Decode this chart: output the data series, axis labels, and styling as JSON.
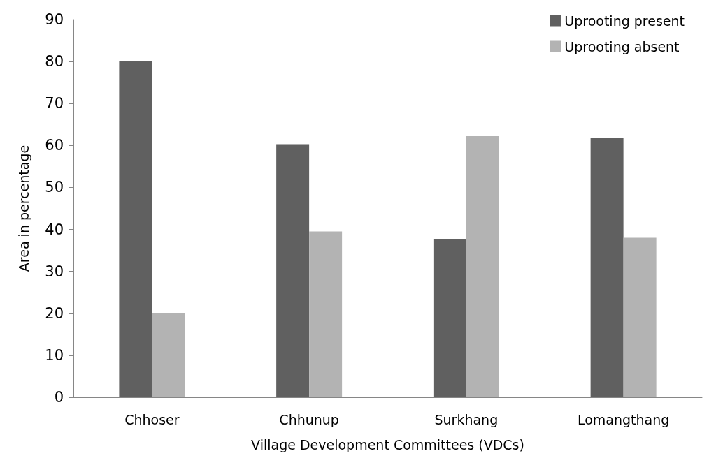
{
  "chart_data": {
    "type": "bar",
    "xlabel": "Village Development Committees (VDCs)",
    "ylabel": "Area in percentage",
    "categories": [
      "Chhoser",
      "Chhunup",
      "Surkhang",
      "Lomangthang"
    ],
    "series": [
      {
        "name": "Uprooting present",
        "color": "#606060",
        "values": [
          80,
          60.3,
          37.6,
          61.8
        ]
      },
      {
        "name": "Uprooting absent",
        "color": "#b3b3b3",
        "values": [
          20,
          39.5,
          62.2,
          38
        ]
      }
    ],
    "ylim": [
      0,
      90
    ],
    "yticks": [
      0,
      10,
      20,
      30,
      40,
      50,
      60,
      70,
      80,
      90
    ],
    "grid": false,
    "legend": "top right"
  }
}
